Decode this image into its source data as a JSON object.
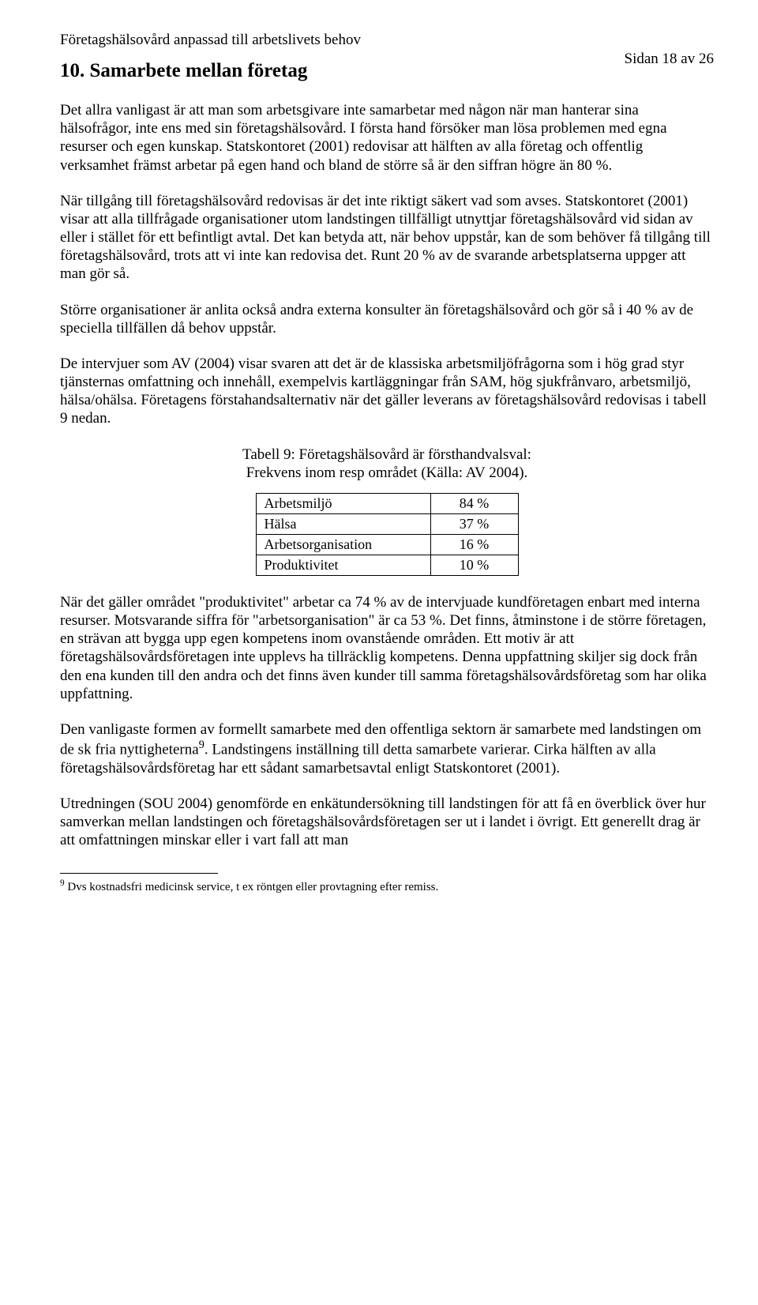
{
  "header": {
    "running_title": "Företagshälsovård anpassad till arbetslivets behov",
    "page_label": "Sidan 18 av 26"
  },
  "section": {
    "number": "10.",
    "title": "Samarbete mellan företag"
  },
  "paragraphs": {
    "p1": "Det allra vanligast är att man som arbetsgivare inte samarbetar med någon när man hanterar sina hälsofrågor, inte ens med sin företagshälsovård. I första hand försöker man lösa problemen med egna resurser och egen kunskap. Statskontoret (2001) redovisar att hälften av alla företag och offentlig verksamhet främst arbetar på egen hand och bland de större så är den siffran högre än 80 %.",
    "p2": "När tillgång till företagshälsovård redovisas är det inte riktigt säkert vad som avses. Statskontoret (2001) visar att alla tillfrågade organisationer utom landstingen tillfälligt utnyttjar företagshälsovård vid sidan av eller i stället för ett befintligt avtal. Det kan betyda att, när behov uppstår, kan de som behöver få tillgång till företagshälsovård, trots att vi inte kan redovisa det. Runt 20 % av de svarande arbetsplatserna uppger att man gör så.",
    "p3": "Större organisationer är anlita också andra externa konsulter än företagshälsovård och gör så i 40 % av de speciella tillfällen då behov uppstår.",
    "p4": "De intervjuer som AV (2004) visar svaren att det är de klassiska arbetsmiljöfrågorna som i hög grad styr tjänsternas omfattning och innehåll, exempelvis kartläggningar från SAM, hög sjukfrånvaro, arbetsmiljö, hälsa/ohälsa. Företagens förstahandsalternativ när det gäller leverans av företagshälsovård redovisas i tabell 9 nedan.",
    "p5": "När det gäller området \"produktivitet\" arbetar ca 74 % av de intervjuade kundföretagen enbart med interna resurser. Motsvarande siffra för \"arbetsorganisation\" är ca 53 %. Det finns, åtminstone i de större företagen, en strävan att bygga upp egen kompetens inom ovanstående områden. Ett motiv är att företagshälsovårdsföretagen inte upplevs ha tillräcklig kompetens. Denna uppfattning skiljer sig dock från den ena kunden till den andra och det finns även kunder till samma företagshälsovårdsföretag som har olika uppfattning.",
    "p6a": "Den vanligaste formen av formellt samarbete med den offentliga sektorn är samarbete med landstingen om de sk fria nyttigheterna",
    "p6b": ". Landstingens inställning till detta samarbete varierar.  Cirka hälften av alla företagshälsovårdsföretag har ett sådant samarbetsavtal enligt Statskontoret (2001).",
    "p7": "Utredningen (SOU 2004) genomförde en enkätundersökning till landstingen för att få en överblick över hur samverkan mellan landstingen och företagshälsovårdsföretagen ser ut i landet i övrigt. Ett generellt drag är att omfattningen minskar eller i vart fall att man"
  },
  "table9": {
    "caption_line1": "Tabell 9: Företagshälsovård är försthandvalsval:",
    "caption_line2": "Frekvens inom resp området (Källa: AV 2004).",
    "rows": [
      {
        "label": "Arbetsmiljö",
        "value": "84 %"
      },
      {
        "label": "Hälsa",
        "value": "37 %"
      },
      {
        "label": "Arbetsorganisation",
        "value": "16 %"
      },
      {
        "label": "Produktivitet",
        "value": "10 %"
      }
    ]
  },
  "footnote": {
    "marker": "9",
    "text": " Dvs kostnadsfri medicinsk service, t ex röntgen eller provtagning efter remiss."
  }
}
